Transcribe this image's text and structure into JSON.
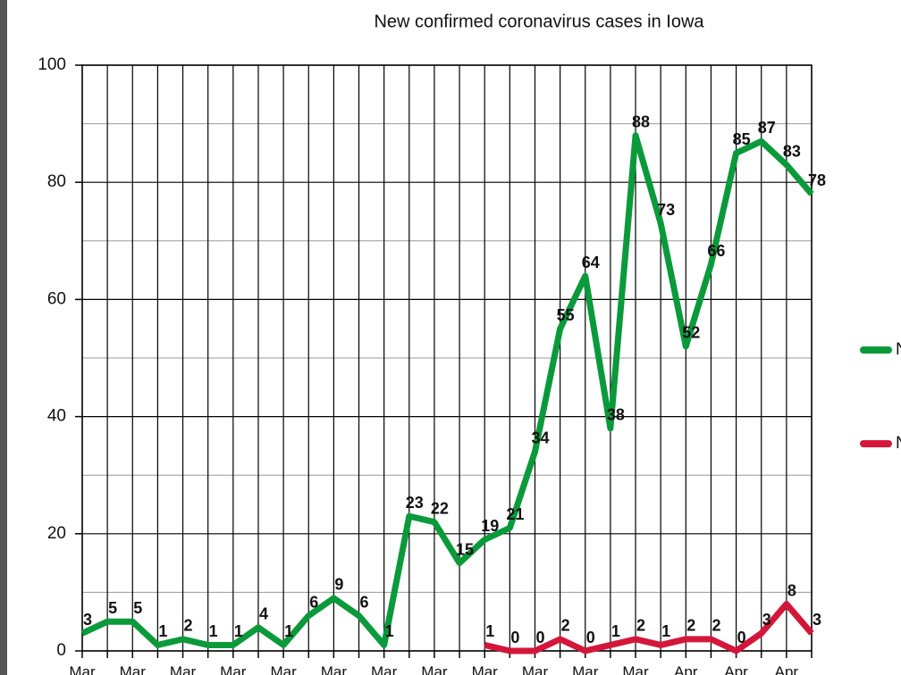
{
  "chart_data": {
    "type": "line",
    "title": "New confirmed coronavirus cases in Iowa",
    "categories": [
      "Mar",
      null,
      "Mar",
      null,
      "Mar",
      null,
      "Mar",
      null,
      "Mar",
      null,
      "Mar",
      null,
      "Mar",
      null,
      "Mar",
      null,
      "Mar",
      null,
      "Mar",
      null,
      "Mar",
      null,
      "Mar",
      null,
      "Apr",
      null,
      "Apr",
      null,
      "Apr",
      null
    ],
    "series": [
      {
        "name": "N",
        "color": "#0a9a3a",
        "values": [
          3,
          5,
          5,
          1,
          2,
          1,
          1,
          4,
          1,
          6,
          9,
          6,
          1,
          23,
          22,
          15,
          19,
          21,
          34,
          55,
          64,
          38,
          88,
          73,
          52,
          66,
          85,
          87,
          83,
          78
        ]
      },
      {
        "name": "N",
        "color": "#d4163a",
        "values": [
          null,
          null,
          null,
          null,
          null,
          null,
          null,
          null,
          null,
          null,
          null,
          null,
          null,
          null,
          null,
          null,
          1,
          0,
          0,
          2,
          0,
          1,
          2,
          1,
          2,
          2,
          0,
          3,
          8,
          3
        ]
      }
    ],
    "ylim": [
      0,
      100
    ],
    "yticks": [
      0,
      20,
      40,
      60,
      80,
      100
    ],
    "grid": true
  }
}
